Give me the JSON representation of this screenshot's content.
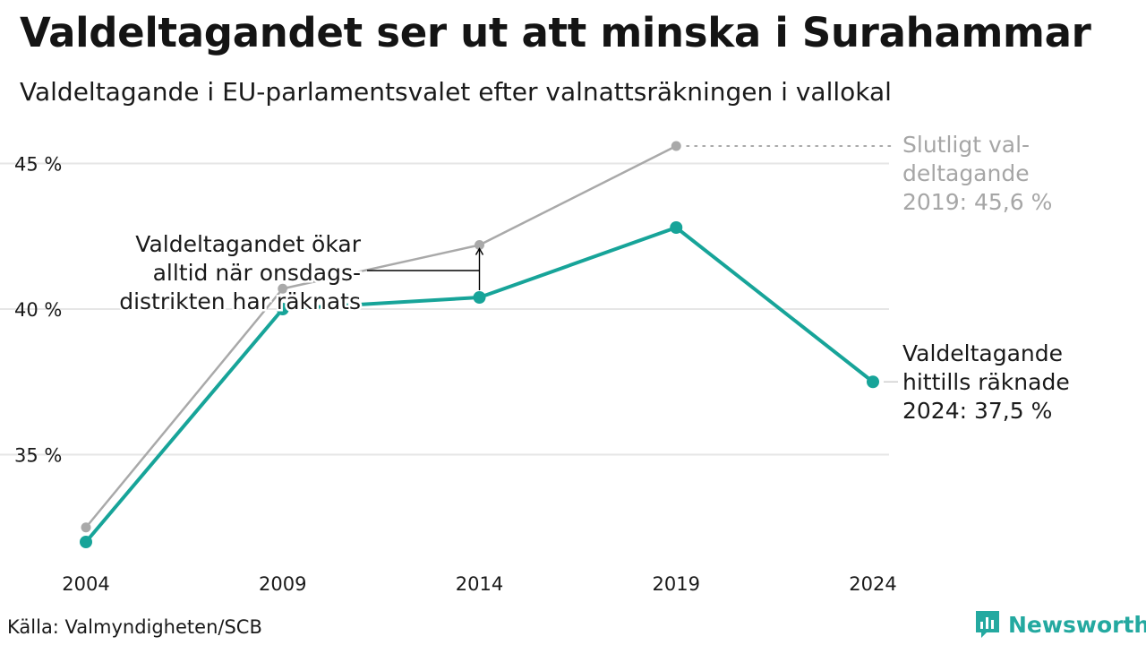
{
  "title": "Valdeltagandet ser ut att minska i Surahammar",
  "subtitle": "Valdeltagande i EU-parlamentsvalet efter valnattsräkningen i vallokal",
  "source": "Källa: Valmyndigheten/SCB",
  "brand": {
    "name": "Newsworthy",
    "icon": "newsworthy-logo-icon"
  },
  "colors": {
    "accent": "#17a499",
    "final": "#a9a9a9",
    "grid": "#e6e6e6",
    "text": "#1a1a1a",
    "final_text": "#a6a6a6"
  },
  "chart_data": {
    "type": "line",
    "categories": [
      "2004",
      "2009",
      "2014",
      "2019",
      "2024"
    ],
    "ylim": [
      31.5,
      46.5
    ],
    "yticks": [
      35,
      40,
      45
    ],
    "ytick_labels": [
      "35 %",
      "40 %",
      "45 %"
    ],
    "grid": true,
    "series": [
      {
        "key": "final",
        "values": [
          32.5,
          40.7,
          42.2,
          45.6,
          null
        ]
      },
      {
        "key": "election_night",
        "values": [
          32.0,
          40.0,
          40.4,
          42.8,
          37.5
        ]
      }
    ],
    "annotations": {
      "gap_note": [
        "Valdeltagandet ökar",
        "alltid när onsdags-",
        "distrikten har räknats"
      ],
      "final_note": [
        "Slutligt val-",
        "deltagande",
        "2019: 45,6 %"
      ],
      "current_note": [
        "Valdeltagande",
        "hittills räknade",
        "2024: 37,5 %"
      ]
    }
  }
}
